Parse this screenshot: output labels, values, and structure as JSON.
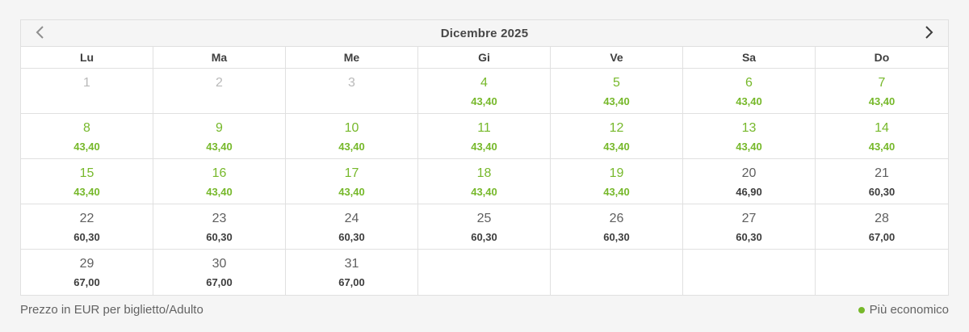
{
  "calendar": {
    "title": "Dicembre 2025",
    "nav": {
      "prev_icon": "chevron-left",
      "next_icon": "chevron-right",
      "prev_enabled": false,
      "next_enabled": true
    },
    "weekdays": [
      "Lu",
      "Ma",
      "Me",
      "Gi",
      "Ve",
      "Sa",
      "Do"
    ],
    "weeks": [
      [
        {
          "day": "1",
          "price": "",
          "state": "disabled"
        },
        {
          "day": "2",
          "price": "",
          "state": "disabled"
        },
        {
          "day": "3",
          "price": "",
          "state": "disabled"
        },
        {
          "day": "4",
          "price": "43,40",
          "state": "cheapest"
        },
        {
          "day": "5",
          "price": "43,40",
          "state": "cheapest"
        },
        {
          "day": "6",
          "price": "43,40",
          "state": "cheapest"
        },
        {
          "day": "7",
          "price": "43,40",
          "state": "cheapest"
        }
      ],
      [
        {
          "day": "8",
          "price": "43,40",
          "state": "cheapest"
        },
        {
          "day": "9",
          "price": "43,40",
          "state": "cheapest"
        },
        {
          "day": "10",
          "price": "43,40",
          "state": "cheapest"
        },
        {
          "day": "11",
          "price": "43,40",
          "state": "cheapest"
        },
        {
          "day": "12",
          "price": "43,40",
          "state": "cheapest"
        },
        {
          "day": "13",
          "price": "43,40",
          "state": "cheapest"
        },
        {
          "day": "14",
          "price": "43,40",
          "state": "cheapest"
        }
      ],
      [
        {
          "day": "15",
          "price": "43,40",
          "state": "cheapest"
        },
        {
          "day": "16",
          "price": "43,40",
          "state": "cheapest"
        },
        {
          "day": "17",
          "price": "43,40",
          "state": "cheapest"
        },
        {
          "day": "18",
          "price": "43,40",
          "state": "cheapest"
        },
        {
          "day": "19",
          "price": "43,40",
          "state": "cheapest"
        },
        {
          "day": "20",
          "price": "46,90",
          "state": "normal"
        },
        {
          "day": "21",
          "price": "60,30",
          "state": "normal"
        }
      ],
      [
        {
          "day": "22",
          "price": "60,30",
          "state": "normal"
        },
        {
          "day": "23",
          "price": "60,30",
          "state": "normal"
        },
        {
          "day": "24",
          "price": "60,30",
          "state": "normal"
        },
        {
          "day": "25",
          "price": "60,30",
          "state": "normal"
        },
        {
          "day": "26",
          "price": "60,30",
          "state": "normal"
        },
        {
          "day": "27",
          "price": "60,30",
          "state": "normal"
        },
        {
          "day": "28",
          "price": "67,00",
          "state": "normal"
        }
      ],
      [
        {
          "day": "29",
          "price": "67,00",
          "state": "normal"
        },
        {
          "day": "30",
          "price": "67,00",
          "state": "normal"
        },
        {
          "day": "31",
          "price": "67,00",
          "state": "normal"
        },
        {
          "day": "",
          "price": "",
          "state": "empty"
        },
        {
          "day": "",
          "price": "",
          "state": "empty"
        },
        {
          "day": "",
          "price": "",
          "state": "empty"
        },
        {
          "day": "",
          "price": "",
          "state": "empty"
        }
      ]
    ]
  },
  "footer": {
    "note": "Prezzo in EUR per biglietto/Adulto",
    "legend_icon": "green-dot",
    "legend_label": "Più economico"
  },
  "colors": {
    "cheapest": "#76b82a",
    "price_text": "#3d3d3d",
    "day_text": "#5f5f5f",
    "disabled_text": "#b9b9b9",
    "border": "#e0e0e0",
    "background": "#f5f5f5"
  }
}
